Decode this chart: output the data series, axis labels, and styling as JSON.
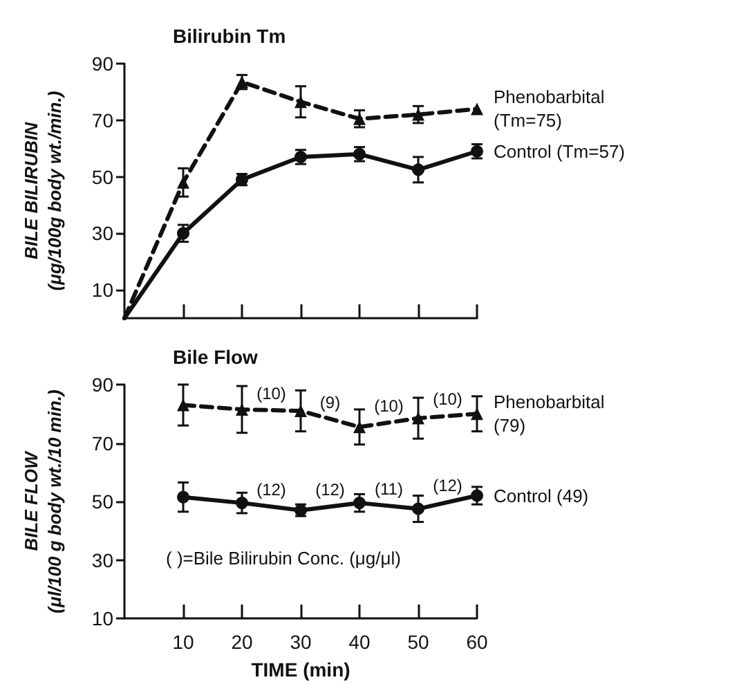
{
  "chart_data": [
    {
      "type": "line",
      "title": "Bilirubin Tm",
      "ylabel": "BILE BILIRUBIN\n(μg/100g body wt./min.)",
      "xlim": [
        0,
        60
      ],
      "xticks": [
        10,
        20,
        30,
        40,
        50,
        60
      ],
      "ylim": [
        0,
        90
      ],
      "yticks": [
        10,
        30,
        50,
        70,
        90
      ],
      "tick_labels": "y",
      "grid": false,
      "legend": false,
      "x": [
        0,
        10,
        20,
        30,
        40,
        50,
        60
      ],
      "series": [
        {
          "name": "Phenobarbital (Tm=75)",
          "color": "#111111",
          "marker": "triangle",
          "line_style": "dashed",
          "values": [
            0,
            48,
            83.5,
            76.5,
            70.5,
            72,
            74
          ],
          "errors": [
            null,
            5,
            2.5,
            5.5,
            3,
            3,
            null
          ]
        },
        {
          "name": "Control (Tm=57)",
          "color": "#111111",
          "marker": "circle",
          "line_style": "solid",
          "values": [
            0,
            30,
            49,
            57,
            58,
            52.5,
            59
          ],
          "errors": [
            null,
            3,
            2,
            2.5,
            2.5,
            4.5,
            2.5
          ]
        }
      ]
    },
    {
      "type": "line",
      "title": "Bile Flow",
      "ylabel": "BILE FLOW\n(μl/100 g body wt./10 min.)",
      "xlabel": "TIME (min)",
      "xlim": [
        0,
        60
      ],
      "xticks": [
        10,
        20,
        30,
        40,
        50,
        60
      ],
      "ylim": [
        10,
        90
      ],
      "yticks": [
        10,
        30,
        50,
        70,
        90
      ],
      "grid": false,
      "legend": false,
      "x": [
        10,
        20,
        30,
        40,
        50,
        60
      ],
      "series": [
        {
          "name": "Phenobarbital (79)",
          "color": "#111111",
          "marker": "triangle",
          "line_style": "dashed",
          "values": [
            83,
            81.5,
            81,
            75.5,
            78.5,
            80
          ],
          "errors": [
            7,
            8,
            7,
            6,
            7,
            6
          ]
        },
        {
          "name": "Control (49)",
          "color": "#111111",
          "marker": "circle",
          "line_style": "solid",
          "values": [
            51.5,
            49.5,
            47,
            49.5,
            47.5,
            52
          ],
          "errors": [
            5,
            3.5,
            2,
            3,
            4.5,
            3
          ]
        }
      ],
      "annotations": [
        "(10)",
        "(9)",
        "(10)",
        "(10)",
        "(12)",
        "(12)",
        "(11)",
        "(12)",
        "( )=Bile Bilirubin Conc. (μg/μl)"
      ]
    }
  ]
}
